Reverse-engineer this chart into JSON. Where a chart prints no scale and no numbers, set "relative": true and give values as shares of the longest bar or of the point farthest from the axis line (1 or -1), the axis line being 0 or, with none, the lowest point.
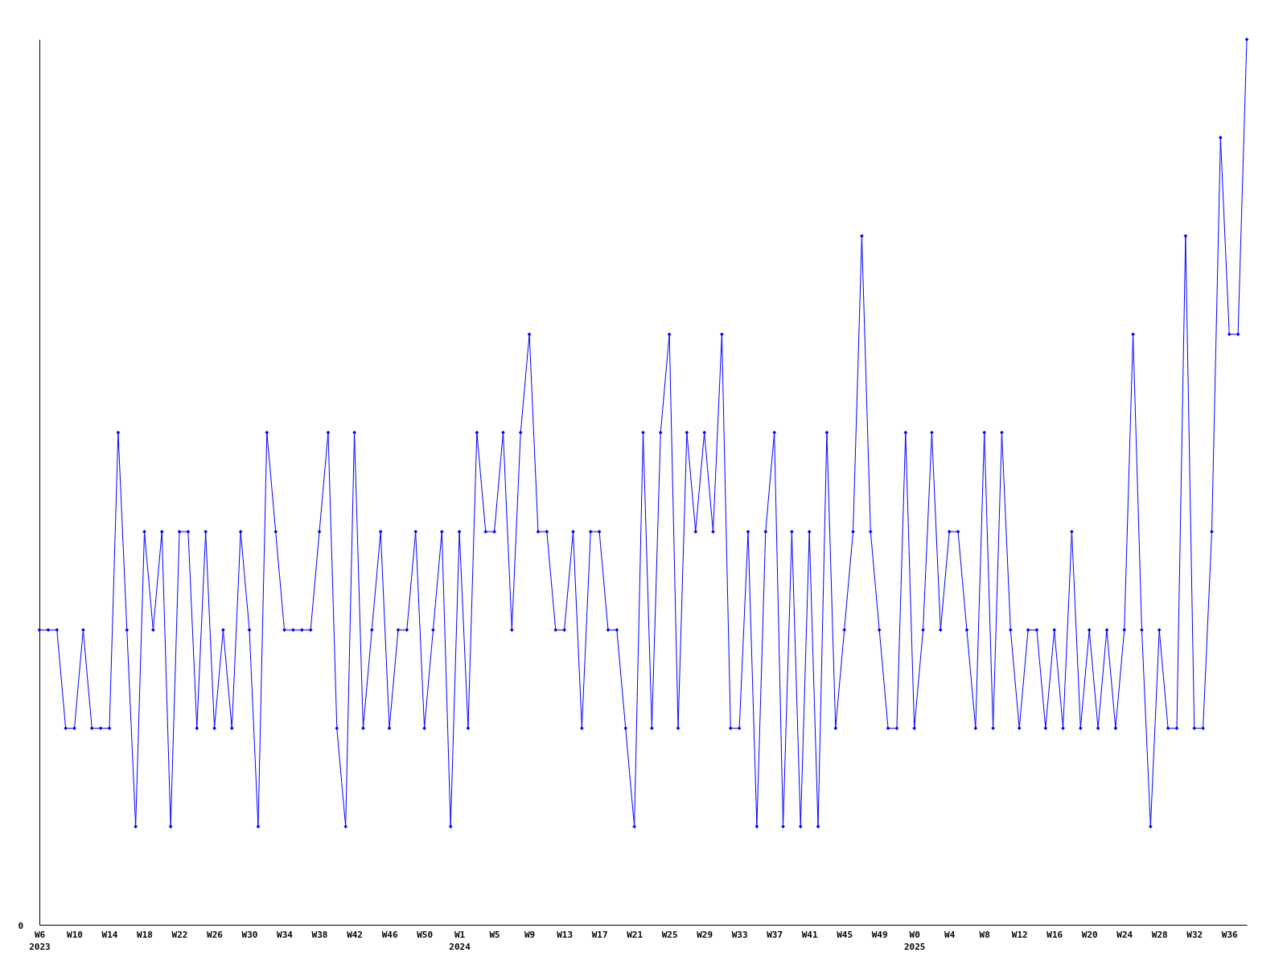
{
  "chart_data": {
    "type": "line",
    "relative": true,
    "marker": "diamond",
    "legend": false,
    "annotations": [
      "0"
    ],
    "categories": [
      "W6\n2023",
      null,
      null,
      null,
      "W10",
      null,
      null,
      null,
      "W14",
      null,
      null,
      null,
      "W18",
      null,
      null,
      null,
      "W22",
      null,
      null,
      null,
      "W26",
      null,
      null,
      null,
      "W30",
      null,
      null,
      null,
      "W34",
      null,
      null,
      null,
      "W38",
      null,
      null,
      null,
      "W42",
      null,
      null,
      null,
      "W46",
      null,
      null,
      null,
      "W50",
      null,
      null,
      null,
      "W1\n2024",
      null,
      null,
      null,
      "W5",
      null,
      null,
      null,
      "W9",
      null,
      null,
      null,
      "W13",
      null,
      null,
      null,
      "W17",
      null,
      null,
      null,
      "W21",
      null,
      null,
      null,
      "W25",
      null,
      null,
      null,
      "W29",
      null,
      null,
      null,
      "W33",
      null,
      null,
      null,
      "W37",
      null,
      null,
      null,
      "W41",
      null,
      null,
      null,
      "W45",
      null,
      null,
      null,
      "W49",
      null,
      null,
      null,
      "W0\n2025",
      null,
      null,
      null,
      "W4",
      null,
      null,
      null,
      "W8",
      null,
      null,
      null,
      "W12",
      null,
      null,
      null,
      "W16",
      null,
      null,
      null,
      "W20",
      null,
      null,
      null,
      "W24",
      null,
      null,
      null,
      "W28",
      null,
      null,
      null,
      "W32",
      null,
      null,
      null,
      "W36",
      null,
      null
    ],
    "series": [
      {
        "color": "#0000ff",
        "values": [
          0.333,
          0.333,
          0.333,
          0.222,
          0.222,
          0.333,
          0.222,
          0.222,
          0.222,
          0.556,
          0.333,
          0.111,
          0.444,
          0.333,
          0.444,
          0.111,
          0.444,
          0.444,
          0.222,
          0.444,
          0.222,
          0.333,
          0.222,
          0.444,
          0.333,
          0.111,
          0.556,
          0.444,
          0.333,
          0.333,
          0.333,
          0.333,
          0.444,
          0.556,
          0.222,
          0.111,
          0.556,
          0.222,
          0.333,
          0.444,
          0.222,
          0.333,
          0.333,
          0.444,
          0.222,
          0.333,
          0.444,
          0.111,
          0.444,
          0.222,
          0.556,
          0.444,
          0.444,
          0.556,
          0.333,
          0.556,
          0.667,
          0.444,
          0.444,
          0.333,
          0.333,
          0.444,
          0.222,
          0.444,
          0.444,
          0.333,
          0.333,
          0.222,
          0.111,
          0.556,
          0.222,
          0.556,
          0.667,
          0.222,
          0.556,
          0.444,
          0.556,
          0.444,
          0.667,
          0.222,
          0.222,
          0.444,
          0.111,
          0.444,
          0.556,
          0.111,
          0.444,
          0.111,
          0.444,
          0.111,
          0.556,
          0.222,
          0.333,
          0.444,
          0.778,
          0.444,
          0.333,
          0.222,
          0.222,
          0.556,
          0.222,
          0.333,
          0.556,
          0.333,
          0.444,
          0.444,
          0.333,
          0.222,
          0.556,
          0.222,
          0.556,
          0.333,
          0.222,
          0.333,
          0.333,
          0.222,
          0.333,
          0.222,
          0.444,
          0.222,
          0.333,
          0.222,
          0.333,
          0.222,
          0.333,
          0.667,
          0.333,
          0.111,
          0.333,
          0.222,
          0.222,
          0.778,
          0.222,
          0.222,
          0.444,
          0.889,
          0.667,
          0.667,
          1
        ]
      }
    ]
  }
}
